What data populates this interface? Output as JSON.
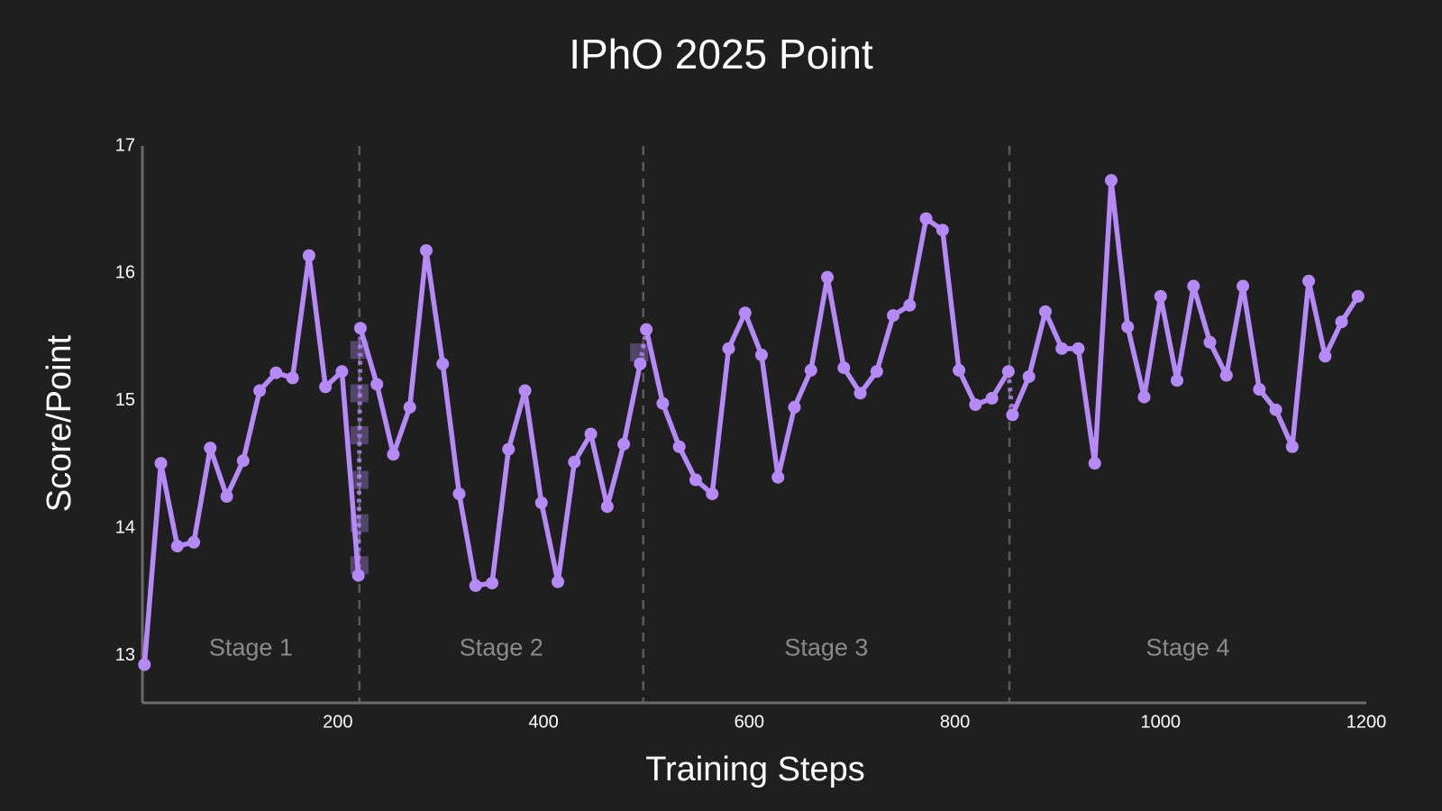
{
  "chart_data": {
    "type": "line",
    "title": "IPhO 2025 Point",
    "xlabel": "Training Steps",
    "ylabel": "Score/Point",
    "xlim": [
      10,
      1200
    ],
    "xticks": [
      200,
      400,
      600,
      800,
      1000,
      1200
    ],
    "ylim": [
      12.63,
      17
    ],
    "yticks": [
      13,
      14,
      15,
      16,
      17
    ],
    "color": "#b58af7",
    "series": [
      {
        "x": [
          12,
          28,
          44,
          60,
          76,
          92,
          108,
          124,
          140,
          156,
          172,
          188,
          204,
          220
        ],
        "values": [
          12.93,
          14.51,
          13.86,
          13.89,
          14.63,
          14.25,
          14.53,
          15.08,
          15.22,
          15.18,
          16.14,
          15.11,
          15.23,
          13.63
        ]
      },
      {
        "x": [
          222,
          238,
          254,
          270,
          286,
          302,
          318,
          334,
          350,
          366,
          382,
          398,
          414,
          430,
          446,
          462,
          478,
          494
        ],
        "values": [
          15.57,
          15.13,
          14.58,
          14.95,
          16.18,
          15.29,
          14.27,
          13.55,
          13.57,
          14.62,
          15.08,
          14.2,
          13.58,
          14.52,
          14.74,
          14.17,
          14.66,
          15.29
        ]
      },
      {
        "x": [
          500,
          516,
          532,
          548,
          564,
          580,
          596,
          612,
          628,
          644,
          660,
          676,
          692,
          708,
          724,
          740,
          756,
          772,
          788,
          804,
          820,
          836,
          852
        ],
        "values": [
          15.56,
          14.98,
          14.64,
          14.38,
          14.27,
          15.41,
          15.69,
          15.36,
          14.4,
          14.95,
          15.24,
          15.97,
          15.26,
          15.06,
          15.23,
          15.67,
          15.75,
          16.43,
          16.34,
          15.24,
          14.97,
          15.02,
          15.23
        ]
      },
      {
        "x": [
          856,
          872,
          888,
          904,
          920,
          936,
          952,
          968,
          984,
          1000,
          1016,
          1032,
          1048,
          1064,
          1080,
          1096,
          1112,
          1128,
          1144,
          1160,
          1176,
          1192
        ],
        "values": [
          14.89,
          15.19,
          15.7,
          15.41,
          15.41,
          14.51,
          16.73,
          15.58,
          15.03,
          15.82,
          15.16,
          15.9,
          15.46,
          15.2,
          15.9,
          15.09,
          14.93,
          14.64,
          15.94,
          15.35,
          15.62,
          15.82
        ]
      }
    ],
    "markers": {
      "x": [
        221,
        221,
        221,
        221,
        221,
        221,
        493
      ],
      "values": [
        15.4,
        15.06,
        14.73,
        14.38,
        14.04,
        13.71,
        15.38
      ]
    },
    "dividers": [
      221,
      497,
      853
    ],
    "stages": [
      "Stage 1",
      "Stage 2",
      "Stage 3",
      "Stage 4"
    ],
    "stage_label_y": 13.05
  }
}
